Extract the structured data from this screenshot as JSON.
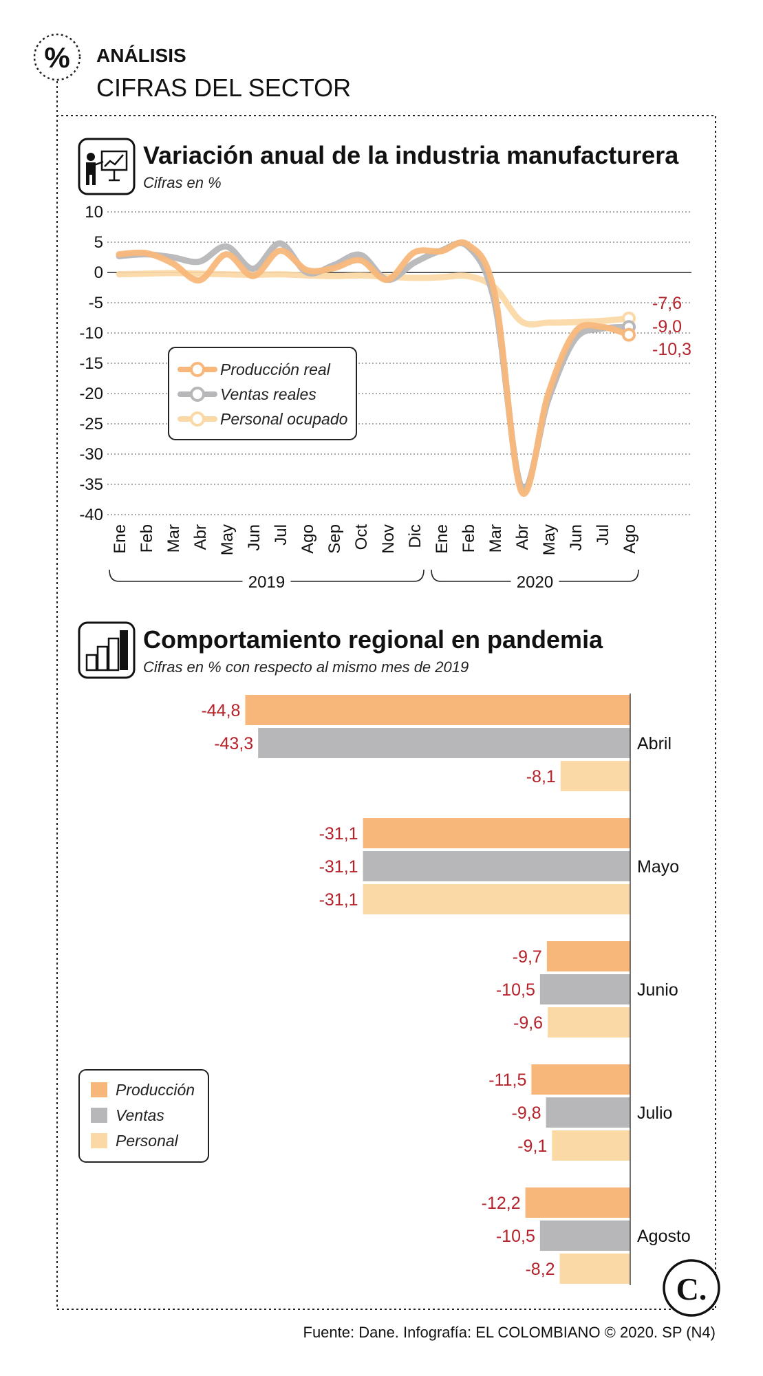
{
  "header": {
    "icon_symbol": "%",
    "section": "ANÁLISIS",
    "title": "CIFRAS DEL SECTOR"
  },
  "colors": {
    "produccion": "#f8b77a",
    "ventas": "#b7b7b9",
    "personal": "#fbd9a6",
    "value_text": "#b5222a"
  },
  "chart_data": [
    {
      "type": "line",
      "title": "Variación anual de la industria manufacturera",
      "subtitle": "Cifras en %",
      "icon": "presentation-chart-icon",
      "ylim": [
        -40,
        10
      ],
      "yticks": [
        10,
        5,
        0,
        -5,
        -10,
        -15,
        -20,
        -25,
        -30,
        -35,
        -40
      ],
      "ytick_labels": [
        "10",
        "5",
        "0",
        "-5",
        "-10",
        "-15",
        "-20",
        "-25",
        "-30",
        "-35",
        "-40"
      ],
      "categories": [
        "Ene",
        "Feb",
        "Mar",
        "Abr",
        "May",
        "Jun",
        "Jul",
        "Ago",
        "Sep",
        "Oct",
        "Nov",
        "Dic",
        "Ene",
        "Feb",
        "Mar",
        "Abr",
        "May",
        "Jun",
        "Jul",
        "Ago"
      ],
      "year_groups": [
        {
          "label": "2019",
          "from": 0,
          "to": 11
        },
        {
          "label": "2020",
          "from": 12,
          "to": 19
        }
      ],
      "series": [
        {
          "name": "Producción real",
          "color": "#f8b77a",
          "values": [
            3.0,
            3.2,
            1.5,
            -1.3,
            3.0,
            -0.6,
            3.6,
            0.4,
            0.7,
            2.0,
            -1.2,
            3.3,
            3.5,
            4.6,
            -3.5,
            -36.2,
            -20.0,
            -9.8,
            -9.0,
            -10.3
          ],
          "end_label": "-10,3"
        },
        {
          "name": "Ventas reales",
          "color": "#b7b7b9",
          "values": [
            2.7,
            3.0,
            2.5,
            1.8,
            4.3,
            0.6,
            4.8,
            0.0,
            1.2,
            2.9,
            -1.2,
            1.6,
            3.6,
            4.3,
            -5.0,
            -35.5,
            -21.0,
            -11.0,
            -9.3,
            -9.0
          ],
          "end_label": "-9,0"
        },
        {
          "name": "Personal ocupado",
          "color": "#fbd9a6",
          "values": [
            -0.3,
            -0.2,
            -0.1,
            -0.2,
            -0.3,
            -0.4,
            -0.3,
            -0.5,
            -0.6,
            -0.5,
            -0.7,
            -0.9,
            -0.8,
            -0.6,
            -2.5,
            -8.1,
            -8.3,
            -8.2,
            -8.0,
            -7.6
          ],
          "end_label": "-7,6"
        }
      ]
    },
    {
      "type": "bar",
      "orientation": "horizontal",
      "title": "Comportamiento regional en pandemia",
      "subtitle": "Cifras en % con respecto al mismo mes de 2019",
      "icon": "bar-growth-icon",
      "xlim": [
        -50,
        0
      ],
      "categories": [
        "Abril",
        "Mayo",
        "Junio",
        "Julio",
        "Agosto"
      ],
      "series": [
        {
          "name": "Producción",
          "color": "#f8b77a",
          "values": [
            -44.8,
            -31.1,
            -9.7,
            -11.5,
            -12.2
          ],
          "labels": [
            "-44,8",
            "-31,1",
            "-9,7",
            "-11,5",
            "-12,2"
          ]
        },
        {
          "name": "Ventas",
          "color": "#b7b7b9",
          "values": [
            -43.3,
            -31.1,
            -10.5,
            -9.8,
            -10.5
          ],
          "labels": [
            "-43,3",
            "-31,1",
            "-10,5",
            "-9,8",
            "-10,5"
          ]
        },
        {
          "name": "Personal",
          "color": "#fbd9a6",
          "values": [
            -8.1,
            -31.1,
            -9.6,
            -9.1,
            -8.2
          ],
          "labels": [
            "-8,1",
            "-31,1",
            "-9,6",
            "-9,1",
            "-8,2"
          ]
        }
      ]
    }
  ],
  "logo": {
    "text": "C."
  },
  "footer": {
    "source": "Fuente: Dane. Infografía: EL COLOMBIANO © 2020. SP (N4)"
  }
}
